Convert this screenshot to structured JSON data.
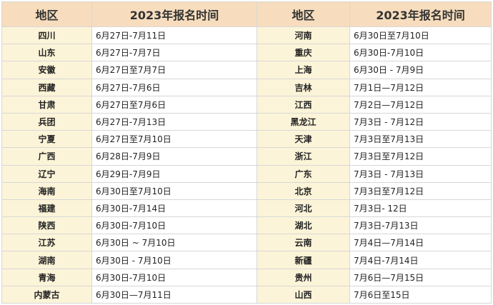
{
  "table": {
    "headers": [
      "地区",
      "2023年报名时间",
      "地区",
      "2023年报名时间"
    ],
    "rows": [
      {
        "left_region": "四川",
        "left_date": "6月27日-7月11日",
        "right_region": "河南",
        "right_date": "6月30日至7月10日"
      },
      {
        "left_region": "山东",
        "left_date": "6月27日-7月7日",
        "right_region": "重庆",
        "right_date": "6月30日-7月10日"
      },
      {
        "left_region": "安徽",
        "left_date": "6月27日至7月7日",
        "right_region": "上海",
        "right_date": "6月30日 - 7月9日"
      },
      {
        "left_region": "西藏",
        "left_date": "6月27日-7月6日",
        "right_region": "吉林",
        "right_date": "7月1日—7月12日"
      },
      {
        "left_region": "甘肃",
        "left_date": "6月27日至7月6日",
        "right_region": "江西",
        "right_date": "7月2日—7月12日"
      },
      {
        "left_region": "兵团",
        "left_date": "6月27日-7月13日",
        "right_region": "黑龙江",
        "right_date": "7月3日 - 7月12日"
      },
      {
        "left_region": "宁夏",
        "left_date": "6月27日至7月10日",
        "right_region": "天津",
        "right_date": "7月3日至7月13日"
      },
      {
        "left_region": "广西",
        "left_date": "6月28日-7月9日",
        "right_region": "浙江",
        "right_date": "7月3日至7月12日"
      },
      {
        "left_region": "辽宁",
        "left_date": "6月29日-7月9日",
        "right_region": "广东",
        "right_date": "7月3日 - 7月13日"
      },
      {
        "left_region": "海南",
        "left_date": "6月30日至7月10日",
        "right_region": "北京",
        "right_date": "7月3日至7月12日"
      },
      {
        "left_region": "福建",
        "left_date": "6月30日-7月14日",
        "right_region": "河北",
        "right_date": "7月3日- 12日"
      },
      {
        "left_region": "陕西",
        "left_date": "6月30日-7月10日",
        "right_region": "湖北",
        "right_date": "7月3日-7月13日"
      },
      {
        "left_region": "江苏",
        "left_date": "6月30日 ~ 7月10日",
        "right_region": "云南",
        "right_date": "7月4日—7月14日"
      },
      {
        "left_region": "湖南",
        "left_date": "6月30日 - 7月10日",
        "right_region": "新疆",
        "right_date": "7月4日-7月14日"
      },
      {
        "left_region": "青海",
        "left_date": "6月30日-7月10日",
        "right_region": "贵州",
        "right_date": "7月6日—7月15日"
      },
      {
        "left_region": "内蒙古",
        "left_date": "6月30日—7月11日",
        "right_region": "山西",
        "right_date": "7月6日至15日"
      }
    ]
  },
  "colors": {
    "header_bg": "#f7ddbd",
    "region_bg": "#fcf4d8",
    "date_bg": "#ffffff",
    "border": "#d7d7d7"
  }
}
